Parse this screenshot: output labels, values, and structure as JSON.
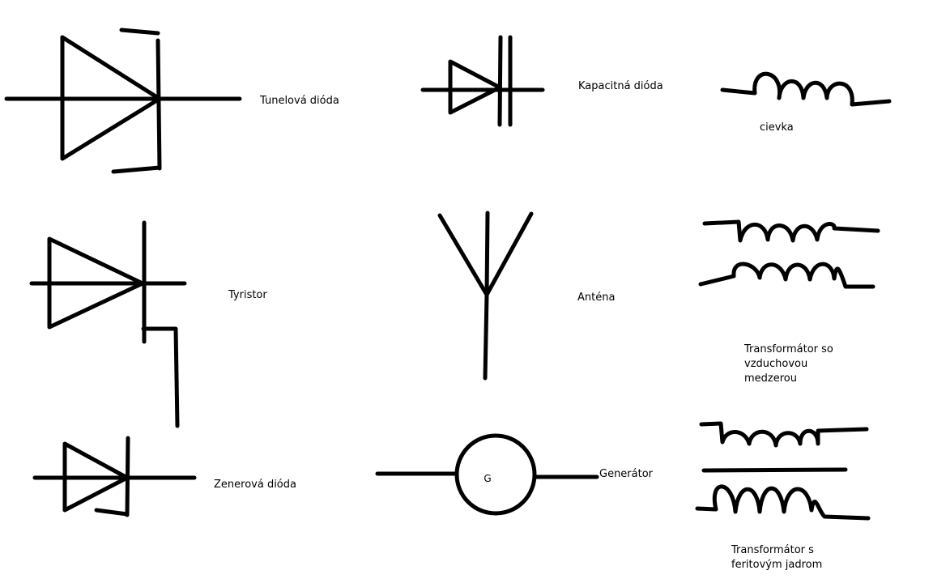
{
  "labels": {
    "tunnel_diode": "Tunelová dióda",
    "capacitance_diode": "Kapacitná dióda",
    "coil": "cievka",
    "thyristor": "Tyristor",
    "antenna": "Anténa",
    "air_gap_transformer_line1": "Transformátor so",
    "air_gap_transformer_line2": "vzduchovou",
    "air_gap_transformer_line3": "medzerou",
    "zener_diode": "Zenerová dióda",
    "generator_symbol_letter": "G",
    "generator": "Generátor",
    "ferrite_transformer_line1": "Transformátor s",
    "ferrite_transformer_line2": "feritovým jadrom"
  }
}
